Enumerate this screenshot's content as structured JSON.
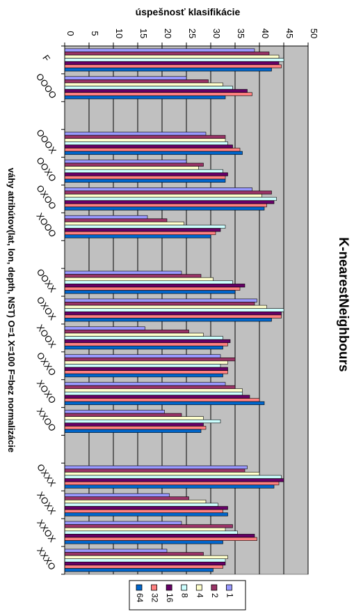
{
  "chart_data": {
    "type": "bar",
    "orientation": "horizontal",
    "title": "K-nearestNeighbours",
    "xlabel": "úspešnosť klasifikácie",
    "ylabel": "váhy atribútov(lat, lon, depth, NST) O=1  X=100  F=bez normalizácie",
    "xlim": [
      0,
      50
    ],
    "ticks": [
      "0",
      "5",
      "10",
      "15",
      "20",
      "25",
      "30",
      "35",
      "40",
      "45",
      "50"
    ],
    "grid": true,
    "legend_position": "bottom",
    "categories": [
      "F",
      "OOOO",
      "",
      "OOOX",
      "OOXO",
      "OXOO",
      "XOOO",
      "",
      "OOXX",
      "OXOX",
      "XOOX",
      "OXXO",
      "XOXO",
      "XXOO",
      "",
      "OXXX",
      "XOXX",
      "XXOX",
      "XXXO"
    ],
    "series": [
      {
        "name": "1",
        "color": "#9999FF",
        "values": [
          39,
          25,
          null,
          29,
          25,
          38.5,
          17,
          null,
          24,
          39.5,
          16.5,
          32,
          33,
          20.5,
          null,
          37.5,
          21.5,
          24,
          21
        ]
      },
      {
        "name": "2",
        "color": "#993366",
        "values": [
          42,
          29.5,
          null,
          33,
          28.5,
          42.5,
          21,
          null,
          28,
          39,
          25.5,
          35,
          35,
          24,
          null,
          37,
          25.5,
          34.5,
          28.5
        ]
      },
      {
        "name": "4",
        "color": "#FFFFCC",
        "values": [
          44,
          32.5,
          null,
          33,
          27.5,
          40.5,
          24.5,
          null,
          30.5,
          41.5,
          28.5,
          33.5,
          36.5,
          28.5,
          null,
          40,
          29,
          33,
          33.5
        ]
      },
      {
        "name": "8",
        "color": "#CCFFFF",
        "values": [
          45,
          34.5,
          null,
          33.5,
          32.5,
          43.5,
          33,
          null,
          34.5,
          45,
          32.5,
          32,
          36.5,
          32,
          null,
          44.5,
          31.5,
          35.5,
          33
        ]
      },
      {
        "name": "16",
        "color": "#660066",
        "values": [
          44,
          37.5,
          null,
          34.5,
          33.5,
          43,
          32,
          null,
          37,
          44.5,
          34,
          33.5,
          38,
          28.5,
          null,
          45,
          33.5,
          39,
          33
        ]
      },
      {
        "name": "32",
        "color": "#FF8080",
        "values": [
          44.5,
          38.5,
          null,
          36,
          33,
          41.5,
          31,
          null,
          36,
          44.5,
          33.5,
          33.5,
          40,
          29,
          null,
          44,
          32.5,
          39.5,
          32.5
        ]
      },
      {
        "name": "64",
        "color": "#0066CC",
        "values": [
          42.5,
          33,
          null,
          36.5,
          33,
          41,
          30,
          null,
          35,
          42.5,
          32.5,
          32.5,
          41,
          28,
          null,
          43,
          33.5,
          32.5,
          30.5
        ]
      }
    ]
  }
}
